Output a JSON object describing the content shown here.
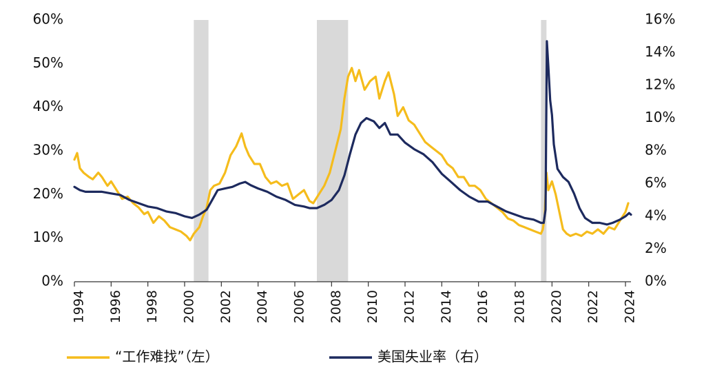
{
  "chart_data": {
    "type": "line",
    "title": "",
    "xlabel": "",
    "ylabel_left": "",
    "ylabel_right": "",
    "x_ticks": [
      "1994",
      "1996",
      "1998",
      "2000",
      "2002",
      "2004",
      "2006",
      "2008",
      "2010",
      "2012",
      "2014",
      "2016",
      "2018",
      "2020",
      "2022",
      "2024"
    ],
    "x_range": [
      1994,
      2024.3
    ],
    "y_left": {
      "range": [
        0,
        60
      ],
      "ticks": [
        "0%",
        "10%",
        "20%",
        "30%",
        "40%",
        "50%",
        "60%"
      ]
    },
    "y_right": {
      "range": [
        0,
        16
      ],
      "ticks": [
        "0%",
        "2%",
        "4%",
        "6%",
        "8%",
        "10%",
        "12%",
        "14%",
        "16%"
      ]
    },
    "recession_shading": [
      [
        2000.5,
        2001.3
      ],
      [
        2007.2,
        2008.9
      ],
      [
        2019.4,
        2019.7
      ]
    ],
    "grid": false,
    "legend_position": "bottom",
    "series": [
      {
        "name": "“工作难找”（左）",
        "axis": "left",
        "color": "#F5BC1C",
        "points": [
          [
            1994.0,
            28
          ],
          [
            1994.15,
            29.5
          ],
          [
            1994.3,
            26
          ],
          [
            1994.5,
            25
          ],
          [
            1994.8,
            24
          ],
          [
            1995.0,
            23.5
          ],
          [
            1995.3,
            25
          ],
          [
            1995.5,
            24
          ],
          [
            1995.8,
            22
          ],
          [
            1996.0,
            23
          ],
          [
            1996.3,
            21
          ],
          [
            1996.6,
            19
          ],
          [
            1996.9,
            19.5
          ],
          [
            1997.2,
            18
          ],
          [
            1997.5,
            17
          ],
          [
            1997.8,
            15.5
          ],
          [
            1998.0,
            16
          ],
          [
            1998.3,
            13.5
          ],
          [
            1998.6,
            15
          ],
          [
            1998.9,
            14
          ],
          [
            1999.2,
            12.5
          ],
          [
            1999.5,
            12
          ],
          [
            1999.8,
            11.5
          ],
          [
            2000.1,
            10.5
          ],
          [
            2000.3,
            9.5
          ],
          [
            2000.5,
            11
          ],
          [
            2000.8,
            12.5
          ],
          [
            2001.0,
            15
          ],
          [
            2001.2,
            17
          ],
          [
            2001.4,
            21
          ],
          [
            2001.6,
            22
          ],
          [
            2001.9,
            22.5
          ],
          [
            2002.2,
            25
          ],
          [
            2002.5,
            29
          ],
          [
            2002.8,
            31
          ],
          [
            2003.1,
            34
          ],
          [
            2003.3,
            31
          ],
          [
            2003.5,
            29
          ],
          [
            2003.8,
            27
          ],
          [
            2004.1,
            27
          ],
          [
            2004.4,
            24
          ],
          [
            2004.7,
            22.5
          ],
          [
            2005.0,
            23
          ],
          [
            2005.3,
            22
          ],
          [
            2005.6,
            22.5
          ],
          [
            2005.9,
            19
          ],
          [
            2006.2,
            20
          ],
          [
            2006.5,
            21
          ],
          [
            2006.8,
            18.5
          ],
          [
            2007.0,
            18
          ],
          [
            2007.3,
            20
          ],
          [
            2007.6,
            22
          ],
          [
            2007.9,
            25
          ],
          [
            2008.2,
            30
          ],
          [
            2008.5,
            35
          ],
          [
            2008.7,
            42
          ],
          [
            2008.9,
            47
          ],
          [
            2009.1,
            49
          ],
          [
            2009.3,
            46
          ],
          [
            2009.5,
            48.5
          ],
          [
            2009.8,
            44
          ],
          [
            2010.1,
            46
          ],
          [
            2010.4,
            47
          ],
          [
            2010.6,
            42
          ],
          [
            2010.9,
            46
          ],
          [
            2011.1,
            48
          ],
          [
            2011.4,
            43
          ],
          [
            2011.6,
            38
          ],
          [
            2011.9,
            40
          ],
          [
            2012.2,
            37
          ],
          [
            2012.5,
            36
          ],
          [
            2012.8,
            34
          ],
          [
            2013.1,
            32
          ],
          [
            2013.4,
            31
          ],
          [
            2013.7,
            30
          ],
          [
            2014.0,
            29
          ],
          [
            2014.3,
            27
          ],
          [
            2014.6,
            26
          ],
          [
            2014.9,
            24
          ],
          [
            2015.2,
            24
          ],
          [
            2015.5,
            22
          ],
          [
            2015.8,
            22
          ],
          [
            2016.1,
            21
          ],
          [
            2016.4,
            19
          ],
          [
            2016.7,
            18
          ],
          [
            2017.0,
            17
          ],
          [
            2017.3,
            16
          ],
          [
            2017.6,
            14.5
          ],
          [
            2017.9,
            14
          ],
          [
            2018.2,
            13
          ],
          [
            2018.5,
            12.5
          ],
          [
            2018.8,
            12
          ],
          [
            2019.1,
            11.5
          ],
          [
            2019.4,
            11
          ],
          [
            2019.5,
            12
          ],
          [
            2019.6,
            15
          ],
          [
            2019.7,
            25
          ],
          [
            2019.8,
            21
          ],
          [
            2020.0,
            23
          ],
          [
            2020.2,
            20
          ],
          [
            2020.4,
            16
          ],
          [
            2020.6,
            12
          ],
          [
            2020.8,
            11
          ],
          [
            2021.0,
            10.5
          ],
          [
            2021.3,
            11
          ],
          [
            2021.6,
            10.5
          ],
          [
            2021.9,
            11.5
          ],
          [
            2022.2,
            11
          ],
          [
            2022.5,
            12
          ],
          [
            2022.8,
            11
          ],
          [
            2023.1,
            12.5
          ],
          [
            2023.4,
            12
          ],
          [
            2023.7,
            14
          ],
          [
            2024.0,
            16
          ],
          [
            2024.15,
            18
          ]
        ]
      },
      {
        "name": "美国失业率（右）",
        "axis": "right",
        "color": "#1D2A5E",
        "points": [
          [
            1994.0,
            5.8
          ],
          [
            1994.3,
            5.6
          ],
          [
            1994.6,
            5.5
          ],
          [
            1995.0,
            5.5
          ],
          [
            1995.5,
            5.5
          ],
          [
            1996.0,
            5.4
          ],
          [
            1996.5,
            5.3
          ],
          [
            1997.0,
            5.0
          ],
          [
            1997.5,
            4.8
          ],
          [
            1998.0,
            4.6
          ],
          [
            1998.5,
            4.5
          ],
          [
            1999.0,
            4.3
          ],
          [
            1999.5,
            4.2
          ],
          [
            2000.0,
            4.0
          ],
          [
            2000.4,
            3.9
          ],
          [
            2000.8,
            4.1
          ],
          [
            2001.2,
            4.4
          ],
          [
            2001.5,
            5.0
          ],
          [
            2001.8,
            5.6
          ],
          [
            2002.2,
            5.7
          ],
          [
            2002.6,
            5.8
          ],
          [
            2003.0,
            6.0
          ],
          [
            2003.3,
            6.1
          ],
          [
            2003.6,
            5.9
          ],
          [
            2004.0,
            5.7
          ],
          [
            2004.5,
            5.5
          ],
          [
            2005.0,
            5.2
          ],
          [
            2005.5,
            5.0
          ],
          [
            2006.0,
            4.7
          ],
          [
            2006.5,
            4.6
          ],
          [
            2006.8,
            4.5
          ],
          [
            2007.2,
            4.5
          ],
          [
            2007.6,
            4.7
          ],
          [
            2008.0,
            5.0
          ],
          [
            2008.4,
            5.6
          ],
          [
            2008.7,
            6.5
          ],
          [
            2009.0,
            7.8
          ],
          [
            2009.3,
            9.0
          ],
          [
            2009.6,
            9.7
          ],
          [
            2009.9,
            10.0
          ],
          [
            2010.3,
            9.8
          ],
          [
            2010.6,
            9.4
          ],
          [
            2010.9,
            9.7
          ],
          [
            2011.2,
            9.0
          ],
          [
            2011.6,
            9.0
          ],
          [
            2012.0,
            8.5
          ],
          [
            2012.5,
            8.1
          ],
          [
            2013.0,
            7.8
          ],
          [
            2013.5,
            7.3
          ],
          [
            2014.0,
            6.6
          ],
          [
            2014.5,
            6.1
          ],
          [
            2015.0,
            5.6
          ],
          [
            2015.5,
            5.2
          ],
          [
            2016.0,
            4.9
          ],
          [
            2016.5,
            4.9
          ],
          [
            2017.0,
            4.6
          ],
          [
            2017.5,
            4.3
          ],
          [
            2018.0,
            4.1
          ],
          [
            2018.5,
            3.9
          ],
          [
            2019.0,
            3.8
          ],
          [
            2019.4,
            3.6
          ],
          [
            2019.55,
            3.6
          ],
          [
            2019.65,
            4.4
          ],
          [
            2019.72,
            14.7
          ],
          [
            2019.8,
            13.2
          ],
          [
            2019.9,
            11.1
          ],
          [
            2020.0,
            10.2
          ],
          [
            2020.1,
            8.4
          ],
          [
            2020.3,
            6.9
          ],
          [
            2020.6,
            6.4
          ],
          [
            2020.9,
            6.1
          ],
          [
            2021.2,
            5.4
          ],
          [
            2021.5,
            4.5
          ],
          [
            2021.8,
            3.9
          ],
          [
            2022.2,
            3.6
          ],
          [
            2022.6,
            3.6
          ],
          [
            2023.0,
            3.5
          ],
          [
            2023.3,
            3.6
          ],
          [
            2023.7,
            3.8
          ],
          [
            2024.0,
            4.0
          ],
          [
            2024.2,
            4.2
          ],
          [
            2024.3,
            4.1
          ]
        ]
      }
    ]
  }
}
